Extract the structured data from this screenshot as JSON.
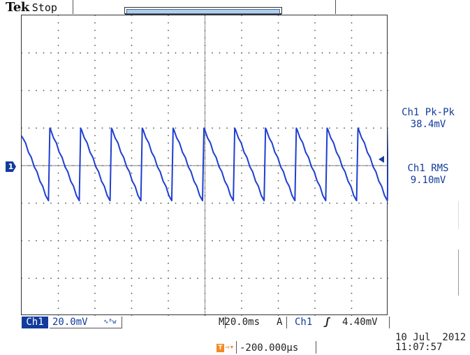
{
  "header": {
    "brand": "Tek",
    "run_state": "Stop"
  },
  "trigger_marker": "T",
  "ground_marker": "1",
  "channel": {
    "label": "Ch1",
    "scale": "20.0mV",
    "bandwidth_icon": "∿ᴮw"
  },
  "timebase": {
    "prefix": "M",
    "value": "20.0ms"
  },
  "trigger": {
    "mode": "A",
    "source": "Ch1",
    "slope_icon": "rising-edge-icon",
    "slope_glyph": "ʃ",
    "level": "4.40mV",
    "position_arrow": "→▾",
    "position": "-200.000μs"
  },
  "measurements": [
    {
      "name": "Ch1 Pk-Pk",
      "value": "38.4mV"
    },
    {
      "name": "Ch1 RMS",
      "value": "9.10mV"
    }
  ],
  "timestamp": {
    "date": "10 Jul  2012",
    "time": "11:07:57"
  },
  "colors": {
    "trace": "#1f3fd0",
    "channel": "#123b9c",
    "trigger": "#f28a25",
    "grid_dots": "#555555"
  },
  "waveform": {
    "type": "sawtooth",
    "cycles": 12,
    "amplitude_mv": 38.4,
    "rms_mv": 9.1
  }
}
